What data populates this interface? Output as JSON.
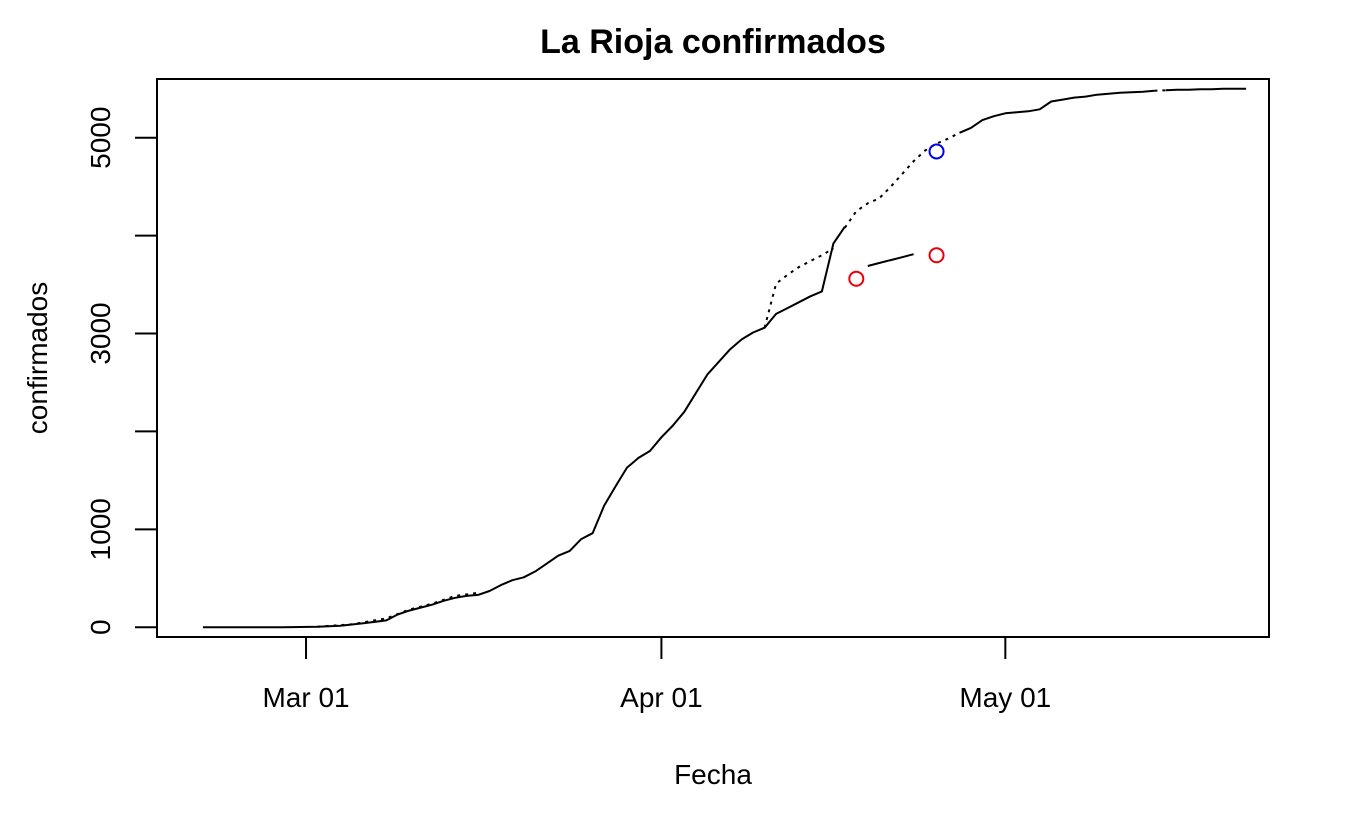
{
  "chart_data": {
    "type": "line",
    "title": "La Rioja confirmados",
    "xlabel": "Fecha",
    "ylabel": "confirmados",
    "x_axis": {
      "type": "date",
      "range": [
        "2020-02-17",
        "2020-05-24"
      ],
      "ticks": [
        {
          "date": "2020-03-01",
          "label": "Mar 01"
        },
        {
          "date": "2020-04-01",
          "label": "Apr 01"
        },
        {
          "date": "2020-05-01",
          "label": "May 01"
        }
      ]
    },
    "y_axis": {
      "range": [
        -100,
        5600
      ],
      "major_ticks": [
        {
          "value": 0,
          "label": "0"
        },
        {
          "value": 1000,
          "label": "1000"
        },
        {
          "value": 3000,
          "label": "3000"
        },
        {
          "value": 5000,
          "label": "5000"
        }
      ],
      "minor_ticks": [
        2000,
        4000
      ]
    },
    "grid": false,
    "series": [
      {
        "style": "solid",
        "color": "#000000",
        "segments": [
          [
            [
              "2020-02-21",
              0
            ],
            [
              "2020-02-24",
              0
            ],
            [
              "2020-02-28",
              0
            ],
            [
              "2020-03-02",
              5
            ],
            [
              "2020-03-04",
              15
            ],
            [
              "2020-03-06",
              40
            ],
            [
              "2020-03-08",
              70
            ],
            [
              "2020-03-09",
              130
            ],
            [
              "2020-03-10",
              170
            ],
            [
              "2020-03-11",
              200
            ],
            [
              "2020-03-12",
              230
            ],
            [
              "2020-03-13",
              270
            ],
            [
              "2020-03-14",
              300
            ],
            [
              "2020-03-15",
              320
            ],
            [
              "2020-03-16",
              330
            ],
            [
              "2020-03-17",
              370
            ],
            [
              "2020-03-18",
              430
            ],
            [
              "2020-03-19",
              480
            ],
            [
              "2020-03-20",
              510
            ],
            [
              "2020-03-21",
              570
            ],
            [
              "2020-03-22",
              650
            ],
            [
              "2020-03-23",
              730
            ],
            [
              "2020-03-24",
              780
            ],
            [
              "2020-03-25",
              900
            ],
            [
              "2020-03-26",
              960
            ],
            [
              "2020-03-27",
              1240
            ],
            [
              "2020-03-28",
              1440
            ],
            [
              "2020-03-29",
              1630
            ],
            [
              "2020-03-30",
              1730
            ],
            [
              "2020-03-31",
              1800
            ],
            [
              "2020-04-01",
              1940
            ],
            [
              "2020-04-02",
              2060
            ],
            [
              "2020-04-03",
              2200
            ],
            [
              "2020-04-04",
              2390
            ],
            [
              "2020-04-05",
              2580
            ],
            [
              "2020-04-06",
              2710
            ],
            [
              "2020-04-07",
              2840
            ],
            [
              "2020-04-08",
              2940
            ],
            [
              "2020-04-09",
              3010
            ],
            [
              "2020-04-10",
              3060
            ],
            [
              "2020-04-11",
              3200
            ],
            [
              "2020-04-12",
              3260
            ],
            [
              "2020-04-13",
              3320
            ],
            [
              "2020-04-14",
              3380
            ],
            [
              "2020-04-15",
              3430
            ],
            [
              "2020-04-16",
              3920
            ],
            [
              "2020-04-17",
              4090
            ]
          ],
          [
            [
              "2020-04-19",
              3690
            ],
            [
              "2020-04-20",
              3720
            ],
            [
              "2020-04-21",
              3750
            ],
            [
              "2020-04-22",
              3780
            ],
            [
              "2020-04-23",
              3810
            ]
          ],
          [
            [
              "2020-04-27",
              5050
            ],
            [
              "2020-04-28",
              5100
            ],
            [
              "2020-04-29",
              5180
            ],
            [
              "2020-04-30",
              5220
            ],
            [
              "2020-05-01",
              5250
            ],
            [
              "2020-05-02",
              5260
            ],
            [
              "2020-05-03",
              5270
            ],
            [
              "2020-05-04",
              5290
            ],
            [
              "2020-05-05",
              5370
            ],
            [
              "2020-05-06",
              5390
            ],
            [
              "2020-05-07",
              5410
            ],
            [
              "2020-05-08",
              5420
            ],
            [
              "2020-05-09",
              5440
            ],
            [
              "2020-05-10",
              5450
            ],
            [
              "2020-05-11",
              5460
            ],
            [
              "2020-05-12",
              5465
            ],
            [
              "2020-05-13",
              5470
            ],
            [
              "2020-05-14",
              5480
            ]
          ],
          [
            [
              "2020-05-15",
              5485
            ],
            [
              "2020-05-16",
              5490
            ],
            [
              "2020-05-17",
              5490
            ],
            [
              "2020-05-18",
              5495
            ],
            [
              "2020-05-19",
              5495
            ],
            [
              "2020-05-20",
              5500
            ],
            [
              "2020-05-21",
              5500
            ],
            [
              "2020-05-22",
              5500
            ]
          ]
        ]
      },
      {
        "style": "dotted",
        "color": "#000000",
        "segments": [
          [
            [
              "2020-03-02",
              5
            ],
            [
              "2020-03-05",
              30
            ],
            [
              "2020-03-08",
              90
            ],
            [
              "2020-03-10",
              180
            ],
            [
              "2020-03-12",
              240
            ],
            [
              "2020-03-14",
              320
            ],
            [
              "2020-03-16",
              350
            ]
          ],
          [
            [
              "2020-04-10",
              3060
            ],
            [
              "2020-04-11",
              3510
            ],
            [
              "2020-04-12",
              3600
            ],
            [
              "2020-04-13",
              3680
            ],
            [
              "2020-04-14",
              3740
            ],
            [
              "2020-04-15",
              3800
            ],
            [
              "2020-04-16",
              3870
            ]
          ],
          [
            [
              "2020-04-17",
              4080
            ],
            [
              "2020-04-18",
              4250
            ],
            [
              "2020-04-19",
              4330
            ],
            [
              "2020-04-20",
              4380
            ],
            [
              "2020-04-21",
              4500
            ],
            [
              "2020-04-22",
              4630
            ],
            [
              "2020-04-23",
              4760
            ],
            [
              "2020-04-24",
              4870
            ],
            [
              "2020-04-25",
              4940
            ],
            [
              "2020-04-26",
              4990
            ],
            [
              "2020-04-27",
              5050
            ]
          ],
          [
            [
              "2020-05-14",
              5480
            ],
            [
              "2020-05-15",
              5485
            ]
          ]
        ]
      }
    ],
    "points": [
      {
        "date": "2020-04-18",
        "value": 3560,
        "color": "#e8000b"
      },
      {
        "date": "2020-04-25",
        "value": 3800,
        "color": "#e8000b"
      },
      {
        "date": "2020-04-25",
        "value": 4860,
        "color": "#0000ee"
      }
    ]
  }
}
